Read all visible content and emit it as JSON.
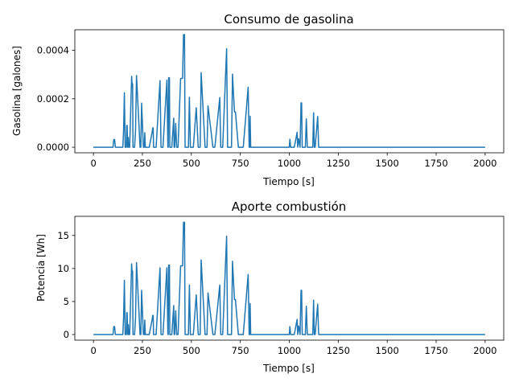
{
  "chart_data": [
    {
      "type": "line",
      "title": "Consumo de gasolina",
      "xlabel": "Tiempo [s]",
      "ylabel": "Gasolina [galones]",
      "xlim": [
        -95,
        2095
      ],
      "ylim": [
        -2.3e-05,
        0.000485
      ],
      "xticks": [
        0,
        250,
        500,
        750,
        1000,
        1250,
        1500,
        1750,
        2000
      ],
      "xtick_labels": [
        "0",
        "250",
        "500",
        "750",
        "1000",
        "1250",
        "1500",
        "1750",
        "2000"
      ],
      "yticks": [
        0,
        0.0002,
        0.0004
      ],
      "ytick_labels": [
        "0.0000",
        "0.0002",
        "0.0004"
      ],
      "grid": false,
      "color": "#1f77b4",
      "series": [
        {
          "x": [
            0,
            100,
            104,
            108,
            112,
            150,
            154,
            158,
            162,
            168,
            170,
            172,
            175,
            178,
            180,
            185,
            195,
            198,
            200,
            202,
            210,
            215,
            220,
            238,
            242,
            246,
            255,
            260,
            262,
            265,
            285,
            300,
            303,
            305,
            307,
            320,
            340,
            345,
            350,
            355,
            375,
            380,
            382,
            384,
            388,
            390,
            393,
            400,
            410,
            412,
            415,
            420,
            425,
            428,
            432,
            445,
            455,
            460,
            465,
            468,
            472,
            485,
            490,
            495,
            505,
            510,
            525,
            535,
            540,
            545,
            550,
            570,
            575,
            580,
            585,
            610,
            615,
            620,
            645,
            650,
            655,
            660,
            680,
            685,
            690,
            705,
            710,
            720,
            725,
            740,
            760,
            765,
            790,
            795,
            798,
            800,
            803,
            807,
            810,
            1000,
            1003,
            1007,
            1025,
            1030,
            1040,
            1043,
            1048,
            1055,
            1060,
            1063,
            1066,
            1070,
            1082,
            1087,
            1092,
            1095,
            1120,
            1124,
            1128,
            1132,
            1145,
            1150,
            1155,
            2000
          ],
          "y": [
            0,
            0,
            3.2e-05,
            3.2e-05,
            0,
            0,
            7e-05,
            0.000225,
            0,
            0,
            9e-05,
            9e-05,
            0,
            4e-05,
            0,
            0,
            0.000293,
            0.00025,
            0.000262,
            0,
            0,
            7e-05,
            0.000296,
            0,
            0,
            0.000182,
            0,
            0,
            6e-05,
            0,
            0,
            6.3e-05,
            8e-05,
            8e-05,
            0,
            0,
            0.000275,
            0,
            0,
            0,
            0.000277,
            0,
            0,
            0.000287,
            0.000287,
            0,
            0,
            0,
            0.00012,
            0,
            0,
            9.8e-05,
            0,
            0,
            0,
            0.000283,
            0.000285,
            0.000465,
            0.000465,
            0,
            0,
            0,
            0.000206,
            0,
            0,
            0,
            0.000163,
            0,
            0,
            0,
            0.000308,
            0,
            0,
            0,
            0.000171,
            0,
            0,
            0,
            0.000205,
            0,
            0,
            0,
            0.000407,
            0,
            0,
            0,
            0.000302,
            0.000146,
            0.000146,
            0,
            0,
            0,
            0.000248,
            0,
            0,
            0.000128,
            0,
            0,
            0,
            0,
            3.3e-05,
            0,
            0,
            1.8e-05,
            6.2e-05,
            0,
            3.5e-05,
            0,
            0.000183,
            0.000183,
            0,
            0,
            0,
            0.000117,
            0,
            0,
            0,
            0.000142,
            0,
            0,
            0.000127,
            0,
            0,
            0
          ]
        }
      ]
    },
    {
      "type": "line",
      "title": "Aporte combustión",
      "xlabel": "Tiempo [s]",
      "ylabel": "Potencia [Wh]",
      "xlim": [
        -95,
        2095
      ],
      "ylim": [
        -0.85,
        17.9
      ],
      "xticks": [
        0,
        250,
        500,
        750,
        1000,
        1250,
        1500,
        1750,
        2000
      ],
      "xtick_labels": [
        "0",
        "250",
        "500",
        "750",
        "1000",
        "1250",
        "1500",
        "1750",
        "2000"
      ],
      "yticks": [
        0,
        5,
        10,
        15
      ],
      "ytick_labels": [
        "0",
        "5",
        "10",
        "15"
      ],
      "grid": false,
      "color": "#1f77b4",
      "series": [
        {
          "x": [
            0,
            100,
            104,
            108,
            112,
            150,
            154,
            158,
            162,
            168,
            170,
            172,
            175,
            178,
            180,
            185,
            195,
            198,
            200,
            202,
            210,
            215,
            220,
            238,
            242,
            246,
            255,
            260,
            262,
            265,
            285,
            300,
            303,
            305,
            307,
            320,
            340,
            345,
            350,
            355,
            375,
            380,
            382,
            384,
            388,
            390,
            393,
            400,
            410,
            412,
            415,
            420,
            425,
            428,
            432,
            445,
            455,
            460,
            465,
            468,
            472,
            485,
            490,
            495,
            505,
            510,
            525,
            535,
            540,
            545,
            550,
            570,
            575,
            580,
            585,
            610,
            615,
            620,
            645,
            650,
            655,
            660,
            680,
            685,
            690,
            705,
            710,
            720,
            725,
            740,
            760,
            765,
            790,
            795,
            798,
            800,
            803,
            807,
            810,
            1000,
            1003,
            1007,
            1025,
            1030,
            1040,
            1043,
            1048,
            1055,
            1060,
            1063,
            1066,
            1070,
            1082,
            1087,
            1092,
            1095,
            1120,
            1124,
            1128,
            1132,
            1145,
            1150,
            1155,
            2000
          ],
          "y": [
            0,
            0,
            1.2,
            1.2,
            0,
            0,
            2.6,
            8.2,
            0,
            0,
            3.3,
            3.3,
            0,
            1.5,
            0,
            0,
            10.7,
            9.1,
            9.6,
            0,
            0,
            2.6,
            10.9,
            0,
            0,
            6.7,
            0,
            0,
            2.2,
            0,
            0,
            2.3,
            2.9,
            2.9,
            0,
            0,
            10.1,
            0,
            0,
            0,
            10.1,
            0,
            0,
            10.5,
            10.5,
            0,
            0,
            0,
            4.4,
            0,
            0,
            3.6,
            0,
            0,
            0,
            10.4,
            10.4,
            17,
            17,
            0,
            0,
            0,
            7.5,
            0,
            0,
            0,
            6.0,
            0,
            0,
            0,
            11.3,
            0,
            0,
            0,
            6.3,
            0,
            0,
            0,
            7.5,
            0,
            0,
            0,
            14.9,
            0,
            0,
            0,
            11.1,
            5.3,
            5.3,
            0,
            0,
            0,
            9.1,
            0,
            0,
            4.7,
            0,
            0,
            0,
            0,
            1.2,
            0,
            0,
            0.7,
            2.3,
            0,
            1.3,
            0,
            6.7,
            6.7,
            0,
            0,
            0,
            4.3,
            0,
            0,
            0,
            5.2,
            0,
            0,
            4.6,
            0,
            0,
            0
          ]
        }
      ]
    }
  ]
}
